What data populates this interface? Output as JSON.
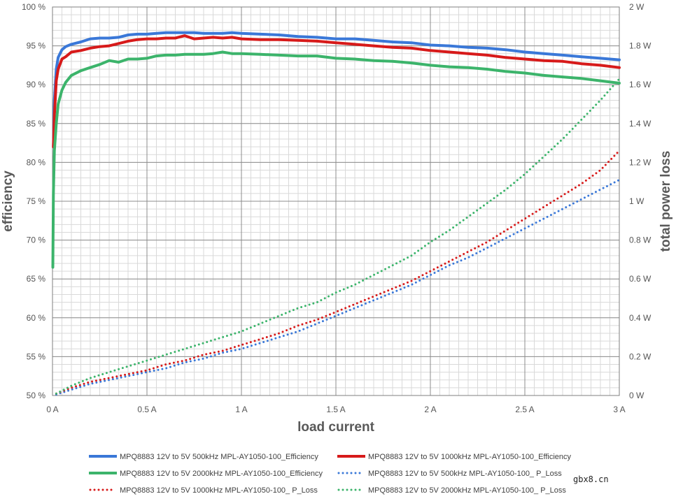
{
  "chart_data": {
    "type": "line",
    "xlabel": "load current",
    "ylabel_left": "efficiency",
    "ylabel_right": "total power loss",
    "x_range": [
      0,
      3
    ],
    "y_left_range": [
      50,
      100
    ],
    "y_right_range": [
      0,
      2
    ],
    "x_ticks": [
      {
        "value": 0,
        "label": "0 A"
      },
      {
        "value": 0.5,
        "label": "0.5 A"
      },
      {
        "value": 1,
        "label": "1 A"
      },
      {
        "value": 1.5,
        "label": "1.5 A"
      },
      {
        "value": 2,
        "label": "2 A"
      },
      {
        "value": 2.5,
        "label": "2.5 A"
      },
      {
        "value": 3,
        "label": "3 A"
      }
    ],
    "y_left_ticks": [
      {
        "value": 50,
        "label": "50 %"
      },
      {
        "value": 55,
        "label": "55 %"
      },
      {
        "value": 60,
        "label": "60 %"
      },
      {
        "value": 65,
        "label": "65 %"
      },
      {
        "value": 70,
        "label": "70 %"
      },
      {
        "value": 75,
        "label": "75 %"
      },
      {
        "value": 80,
        "label": "80 %"
      },
      {
        "value": 85,
        "label": "85 %"
      },
      {
        "value": 90,
        "label": "90 %"
      },
      {
        "value": 95,
        "label": "95 %"
      },
      {
        "value": 100,
        "label": "100 %"
      }
    ],
    "y_right_ticks": [
      {
        "value": 0,
        "label": "0 W"
      },
      {
        "value": 0.2,
        "label": "0.2 W"
      },
      {
        "value": 0.4,
        "label": "0.4 W"
      },
      {
        "value": 0.6,
        "label": "0.6 W"
      },
      {
        "value": 0.8,
        "label": "0.8 W"
      },
      {
        "value": 1,
        "label": "1 W"
      },
      {
        "value": 1.2,
        "label": "1.2 W"
      },
      {
        "value": 1.4,
        "label": "1.4 W"
      },
      {
        "value": 1.6,
        "label": "1.6 W"
      },
      {
        "value": 1.8,
        "label": "1.8 W"
      },
      {
        "value": 2,
        "label": "2 W"
      }
    ],
    "x_minor_step": 0.05,
    "y_minor_step": 1,
    "legend_position": "bottom",
    "series": [
      {
        "name": "MPQ8883 12V to 5V 500kHz MPL-AY1050-100_Efficiency",
        "axis": "left",
        "style": "solid",
        "color": "#3A78D8",
        "x": [
          0.005,
          0.01,
          0.02,
          0.03,
          0.05,
          0.07,
          0.1,
          0.15,
          0.2,
          0.25,
          0.3,
          0.35,
          0.4,
          0.45,
          0.5,
          0.55,
          0.6,
          0.65,
          0.7,
          0.75,
          0.8,
          0.85,
          0.9,
          0.95,
          1.0,
          1.1,
          1.2,
          1.3,
          1.4,
          1.5,
          1.6,
          1.7,
          1.8,
          1.9,
          2.0,
          2.1,
          2.2,
          2.3,
          2.4,
          2.5,
          2.6,
          2.7,
          2.8,
          2.9,
          3.0
        ],
        "y": [
          82,
          88,
          92,
          93.5,
          94.5,
          94.9,
          95.2,
          95.5,
          95.9,
          96.0,
          96.0,
          96.1,
          96.4,
          96.5,
          96.5,
          96.6,
          96.7,
          96.7,
          96.7,
          96.7,
          96.6,
          96.6,
          96.6,
          96.7,
          96.6,
          96.5,
          96.4,
          96.2,
          96.1,
          95.9,
          95.9,
          95.7,
          95.5,
          95.4,
          95.1,
          95.0,
          94.8,
          94.7,
          94.5,
          94.2,
          94.0,
          93.8,
          93.6,
          93.4,
          93.2
        ]
      },
      {
        "name": "MPQ8883 12V to 5V 1000kHz MPL-AY1050-100_Efficiency",
        "axis": "left",
        "style": "solid",
        "color": "#D71A1A",
        "x": [
          0.005,
          0.01,
          0.02,
          0.03,
          0.05,
          0.07,
          0.1,
          0.15,
          0.2,
          0.25,
          0.3,
          0.35,
          0.4,
          0.45,
          0.5,
          0.55,
          0.6,
          0.65,
          0.7,
          0.75,
          0.8,
          0.85,
          0.9,
          0.95,
          1.0,
          1.1,
          1.2,
          1.3,
          1.4,
          1.5,
          1.6,
          1.7,
          1.8,
          1.9,
          2.0,
          2.1,
          2.2,
          2.3,
          2.4,
          2.5,
          2.6,
          2.7,
          2.8,
          2.9,
          3.0
        ],
        "y": [
          82,
          86,
          90.5,
          92,
          93.3,
          93.6,
          94.2,
          94.4,
          94.7,
          94.9,
          95.0,
          95.3,
          95.6,
          95.8,
          95.9,
          95.9,
          96.0,
          96.0,
          96.3,
          95.9,
          96.0,
          96.1,
          96.0,
          96.1,
          95.9,
          95.8,
          95.8,
          95.7,
          95.6,
          95.4,
          95.2,
          95.0,
          94.8,
          94.7,
          94.4,
          94.2,
          94.0,
          93.8,
          93.5,
          93.3,
          93.1,
          93.0,
          92.7,
          92.5,
          92.2
        ]
      },
      {
        "name": "MPQ8883 12V to 5V 2000kHz MPL-AY1050-100_Efficiency",
        "axis": "left",
        "style": "solid",
        "color": "#3CB46B",
        "x": [
          0.002,
          0.005,
          0.01,
          0.02,
          0.03,
          0.05,
          0.07,
          0.1,
          0.15,
          0.2,
          0.25,
          0.3,
          0.35,
          0.4,
          0.45,
          0.5,
          0.55,
          0.6,
          0.65,
          0.7,
          0.75,
          0.8,
          0.85,
          0.9,
          0.95,
          1.0,
          1.1,
          1.2,
          1.3,
          1.4,
          1.5,
          1.6,
          1.7,
          1.8,
          1.9,
          2.0,
          2.1,
          2.2,
          2.3,
          2.4,
          2.5,
          2.6,
          2.7,
          2.8,
          2.9,
          3.0
        ],
        "y": [
          66.5,
          76,
          81.5,
          85,
          87.5,
          89.3,
          90.3,
          91.2,
          91.8,
          92.2,
          92.6,
          93.1,
          92.9,
          93.3,
          93.3,
          93.4,
          93.7,
          93.8,
          93.8,
          93.9,
          93.9,
          93.9,
          94.0,
          94.2,
          94.0,
          94.0,
          93.9,
          93.8,
          93.7,
          93.7,
          93.4,
          93.3,
          93.1,
          93.0,
          92.8,
          92.5,
          92.3,
          92.2,
          92.0,
          91.7,
          91.5,
          91.2,
          91.0,
          90.8,
          90.5,
          90.2
        ]
      },
      {
        "name": "MPQ8883 12V to 5V 500kHz MPL-AY1050-100_ P_Loss",
        "axis": "right",
        "style": "dotted",
        "color": "#3A78D8",
        "x": [
          0.02,
          0.1,
          0.2,
          0.3,
          0.4,
          0.5,
          0.6,
          0.7,
          0.8,
          0.9,
          1.0,
          1.1,
          1.2,
          1.3,
          1.4,
          1.5,
          1.6,
          1.7,
          1.8,
          1.9,
          2.0,
          2.1,
          2.2,
          2.3,
          2.4,
          2.5,
          2.6,
          2.7,
          2.8,
          2.9,
          3.0
        ],
        "y": [
          0.005,
          0.03,
          0.06,
          0.08,
          0.1,
          0.12,
          0.14,
          0.17,
          0.19,
          0.22,
          0.24,
          0.27,
          0.3,
          0.33,
          0.37,
          0.41,
          0.45,
          0.49,
          0.53,
          0.57,
          0.62,
          0.67,
          0.71,
          0.76,
          0.81,
          0.86,
          0.91,
          0.96,
          1.01,
          1.06,
          1.11
        ]
      },
      {
        "name": "MPQ8883 12V to 5V 1000kHz MPL-AY1050-100_ P_Loss",
        "axis": "right",
        "style": "dotted",
        "color": "#D71A1A",
        "x": [
          0.02,
          0.1,
          0.2,
          0.3,
          0.4,
          0.5,
          0.6,
          0.7,
          0.8,
          0.9,
          1.0,
          1.1,
          1.2,
          1.3,
          1.4,
          1.5,
          1.6,
          1.7,
          1.8,
          1.9,
          2.0,
          2.1,
          2.2,
          2.3,
          2.4,
          2.5,
          2.6,
          2.7,
          2.8,
          2.9,
          3.0
        ],
        "y": [
          0.01,
          0.04,
          0.07,
          0.09,
          0.11,
          0.13,
          0.16,
          0.18,
          0.21,
          0.23,
          0.26,
          0.29,
          0.32,
          0.36,
          0.39,
          0.43,
          0.47,
          0.51,
          0.55,
          0.59,
          0.64,
          0.69,
          0.74,
          0.79,
          0.85,
          0.91,
          0.97,
          1.03,
          1.09,
          1.16,
          1.26
        ]
      },
      {
        "name": "MPQ8883 12V to 5V 2000kHz MPL-AY1050-100_ P_Loss",
        "axis": "right",
        "style": "dotted",
        "color": "#3CB46B",
        "x": [
          0.02,
          0.1,
          0.2,
          0.3,
          0.4,
          0.5,
          0.6,
          0.7,
          0.8,
          0.9,
          1.0,
          1.1,
          1.2,
          1.3,
          1.4,
          1.5,
          1.6,
          1.7,
          1.8,
          1.9,
          2.0,
          2.1,
          2.2,
          2.3,
          2.4,
          2.5,
          2.6,
          2.7,
          2.8,
          2.9,
          3.0
        ],
        "y": [
          0.01,
          0.05,
          0.09,
          0.12,
          0.15,
          0.18,
          0.21,
          0.24,
          0.27,
          0.3,
          0.33,
          0.37,
          0.41,
          0.45,
          0.48,
          0.53,
          0.57,
          0.62,
          0.67,
          0.72,
          0.79,
          0.85,
          0.92,
          0.99,
          1.06,
          1.14,
          1.23,
          1.32,
          1.42,
          1.52,
          1.63
        ]
      }
    ]
  },
  "watermark": "gbx8.cn"
}
